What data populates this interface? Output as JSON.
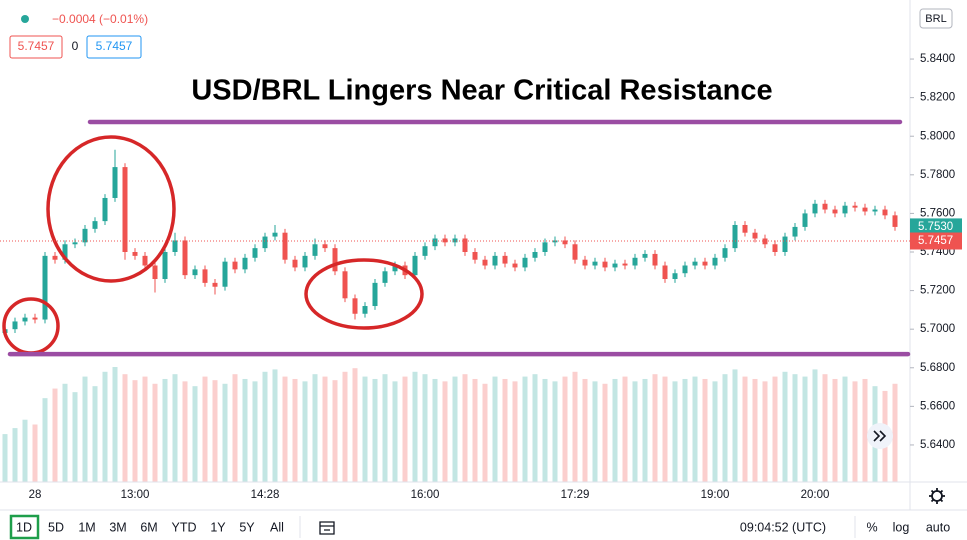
{
  "chart_data": {
    "type": "candlestick",
    "title": "USD/BRL Lingers Near Critical Resistance",
    "currency": "BRL",
    "header": {
      "change": "−0.0004 (−0.01%)",
      "bid": "5.7457",
      "spread": "0",
      "ask": "5.7457"
    },
    "categories": [
      null,
      null,
      null,
      "28",
      null,
      null,
      null,
      null,
      null,
      null,
      null,
      null,
      null,
      "13:00",
      null,
      null,
      null,
      null,
      null,
      null,
      null,
      null,
      null,
      null,
      null,
      null,
      "14:28",
      null,
      null,
      null,
      null,
      null,
      null,
      null,
      null,
      null,
      null,
      null,
      null,
      null,
      null,
      null,
      "16:00",
      null,
      null,
      null,
      null,
      null,
      null,
      null,
      null,
      null,
      null,
      null,
      null,
      null,
      null,
      "17:29",
      null,
      null,
      null,
      null,
      null,
      null,
      null,
      null,
      null,
      null,
      null,
      null,
      null,
      "19:00",
      null,
      null,
      null,
      null,
      null,
      null,
      null,
      null,
      null,
      "20:00",
      null,
      null,
      null,
      null,
      null,
      null,
      null,
      null
    ],
    "open": [
      5.698,
      5.7,
      5.704,
      5.706,
      5.705,
      5.738,
      5.736,
      5.744,
      5.745,
      5.752,
      5.756,
      5.768,
      5.784,
      5.74,
      5.738,
      5.733,
      5.726,
      5.74,
      5.746,
      5.728,
      5.731,
      5.724,
      5.722,
      5.735,
      5.731,
      5.737,
      5.742,
      5.748,
      5.75,
      5.736,
      5.732,
      5.738,
      5.744,
      5.742,
      5.73,
      5.716,
      5.708,
      5.712,
      5.724,
      5.73,
      5.733,
      5.728,
      5.738,
      5.743,
      5.747,
      5.745,
      5.747,
      5.74,
      5.736,
      5.733,
      5.738,
      5.734,
      5.732,
      5.737,
      5.74,
      5.745,
      5.746,
      5.744,
      5.736,
      5.733,
      5.735,
      5.732,
      5.734,
      5.733,
      5.737,
      5.739,
      5.733,
      5.726,
      5.729,
      5.733,
      5.735,
      5.733,
      5.737,
      5.742,
      5.754,
      5.75,
      5.747,
      5.744,
      5.74,
      5.748,
      5.753,
      5.76,
      5.765,
      5.762,
      5.76,
      5.764,
      5.763,
      5.761,
      5.762,
      5.759
    ],
    "high": [
      5.702,
      5.706,
      5.708,
      5.708,
      5.74,
      5.74,
      5.746,
      5.747,
      5.754,
      5.758,
      5.77,
      5.793,
      5.786,
      5.742,
      5.74,
      5.735,
      5.742,
      5.75,
      5.748,
      5.733,
      5.733,
      5.726,
      5.737,
      5.737,
      5.739,
      5.744,
      5.75,
      5.754,
      5.752,
      5.738,
      5.74,
      5.747,
      5.746,
      5.744,
      5.732,
      5.718,
      5.714,
      5.726,
      5.732,
      5.735,
      5.735,
      5.74,
      5.745,
      5.749,
      5.749,
      5.749,
      5.749,
      5.742,
      5.738,
      5.74,
      5.74,
      5.736,
      5.739,
      5.742,
      5.747,
      5.748,
      5.748,
      5.746,
      5.738,
      5.737,
      5.737,
      5.736,
      5.736,
      5.739,
      5.741,
      5.741,
      5.735,
      5.731,
      5.735,
      5.737,
      5.737,
      5.739,
      5.744,
      5.756,
      5.756,
      5.752,
      5.749,
      5.746,
      5.75,
      5.755,
      5.762,
      5.767,
      5.767,
      5.764,
      5.766,
      5.766,
      5.765,
      5.764,
      5.764,
      5.761
    ],
    "low": [
      5.696,
      5.698,
      5.702,
      5.703,
      5.703,
      5.734,
      5.734,
      5.742,
      5.743,
      5.75,
      5.754,
      5.766,
      5.736,
      5.736,
      5.731,
      5.719,
      5.724,
      5.738,
      5.726,
      5.726,
      5.722,
      5.718,
      5.72,
      5.729,
      5.729,
      5.735,
      5.74,
      5.746,
      5.734,
      5.73,
      5.73,
      5.736,
      5.74,
      5.728,
      5.714,
      5.705,
      5.706,
      5.71,
      5.722,
      5.728,
      5.726,
      5.726,
      5.736,
      5.741,
      5.743,
      5.743,
      5.738,
      5.734,
      5.731,
      5.731,
      5.732,
      5.73,
      5.73,
      5.735,
      5.738,
      5.743,
      5.742,
      5.734,
      5.731,
      5.731,
      5.73,
      5.73,
      5.731,
      5.731,
      5.735,
      5.731,
      5.724,
      5.724,
      5.727,
      5.731,
      5.731,
      5.731,
      5.735,
      5.74,
      5.748,
      5.745,
      5.742,
      5.738,
      5.738,
      5.746,
      5.751,
      5.758,
      5.76,
      5.758,
      5.758,
      5.761,
      5.759,
      5.759,
      5.757,
      5.751
    ],
    "close": [
      5.7,
      5.704,
      5.706,
      5.705,
      5.738,
      5.736,
      5.744,
      5.745,
      5.752,
      5.756,
      5.768,
      5.784,
      5.74,
      5.738,
      5.733,
      5.726,
      5.74,
      5.746,
      5.728,
      5.731,
      5.724,
      5.722,
      5.735,
      5.731,
      5.737,
      5.742,
      5.748,
      5.75,
      5.736,
      5.732,
      5.738,
      5.744,
      5.742,
      5.73,
      5.716,
      5.708,
      5.712,
      5.724,
      5.73,
      5.733,
      5.728,
      5.738,
      5.743,
      5.747,
      5.745,
      5.747,
      5.74,
      5.736,
      5.733,
      5.738,
      5.734,
      5.732,
      5.737,
      5.74,
      5.745,
      5.746,
      5.744,
      5.736,
      5.733,
      5.735,
      5.732,
      5.734,
      5.733,
      5.737,
      5.739,
      5.733,
      5.726,
      5.729,
      5.733,
      5.735,
      5.733,
      5.737,
      5.742,
      5.754,
      5.75,
      5.747,
      5.744,
      5.74,
      5.748,
      5.753,
      5.76,
      5.765,
      5.762,
      5.76,
      5.764,
      5.763,
      5.761,
      5.762,
      5.759,
      5.753
    ],
    "volume": [
      40,
      45,
      52,
      48,
      70,
      78,
      82,
      75,
      88,
      80,
      92,
      96,
      90,
      85,
      88,
      82,
      86,
      90,
      84,
      80,
      88,
      85,
      82,
      90,
      86,
      84,
      92,
      94,
      88,
      86,
      84,
      90,
      88,
      85,
      92,
      95,
      88,
      86,
      90,
      84,
      88,
      92,
      90,
      86,
      84,
      88,
      90,
      86,
      82,
      88,
      86,
      84,
      88,
      90,
      86,
      84,
      88,
      92,
      86,
      84,
      82,
      86,
      88,
      84,
      86,
      90,
      88,
      84,
      86,
      88,
      86,
      84,
      90,
      94,
      88,
      86,
      84,
      88,
      92,
      90,
      88,
      94,
      90,
      86,
      88,
      84,
      86,
      80,
      76,
      82
    ],
    "up_color": "#26a69a",
    "down_color": "#ef5350",
    "ylim": [
      5.6208,
      5.8706
    ],
    "yticks": [
      {
        "value": 5.64,
        "label": "5.6400"
      },
      {
        "value": 5.66,
        "label": "5.6600"
      },
      {
        "value": 5.68,
        "label": "5.6800"
      },
      {
        "value": 5.7,
        "label": "5.7000"
      },
      {
        "value": 5.72,
        "label": "5.7200"
      },
      {
        "value": 5.74,
        "label": "5.7400"
      },
      {
        "value": 5.76,
        "label": "5.7600"
      },
      {
        "value": 5.78,
        "label": "5.7800"
      },
      {
        "value": 5.8,
        "label": "5.8000"
      },
      {
        "value": 5.82,
        "label": "5.8200"
      },
      {
        "value": 5.84,
        "label": "5.8400"
      }
    ],
    "hlines": [
      {
        "value": 5.8074,
        "color": "#9b4da3"
      },
      {
        "value": 5.6871,
        "color": "#9b4da3"
      }
    ],
    "price_tags": [
      {
        "value": 5.753,
        "label": "5.7530",
        "color": "#26a69a"
      },
      {
        "value": 5.7457,
        "label": "5.7457",
        "color": "#ef5350"
      }
    ]
  },
  "toolbar": {
    "ranges": [
      "1D",
      "5D",
      "1M",
      "3M",
      "6M",
      "YTD",
      "1Y",
      "5Y",
      "All"
    ],
    "time": "09:04:52 (UTC)",
    "options": [
      "%",
      "log",
      "auto"
    ]
  }
}
